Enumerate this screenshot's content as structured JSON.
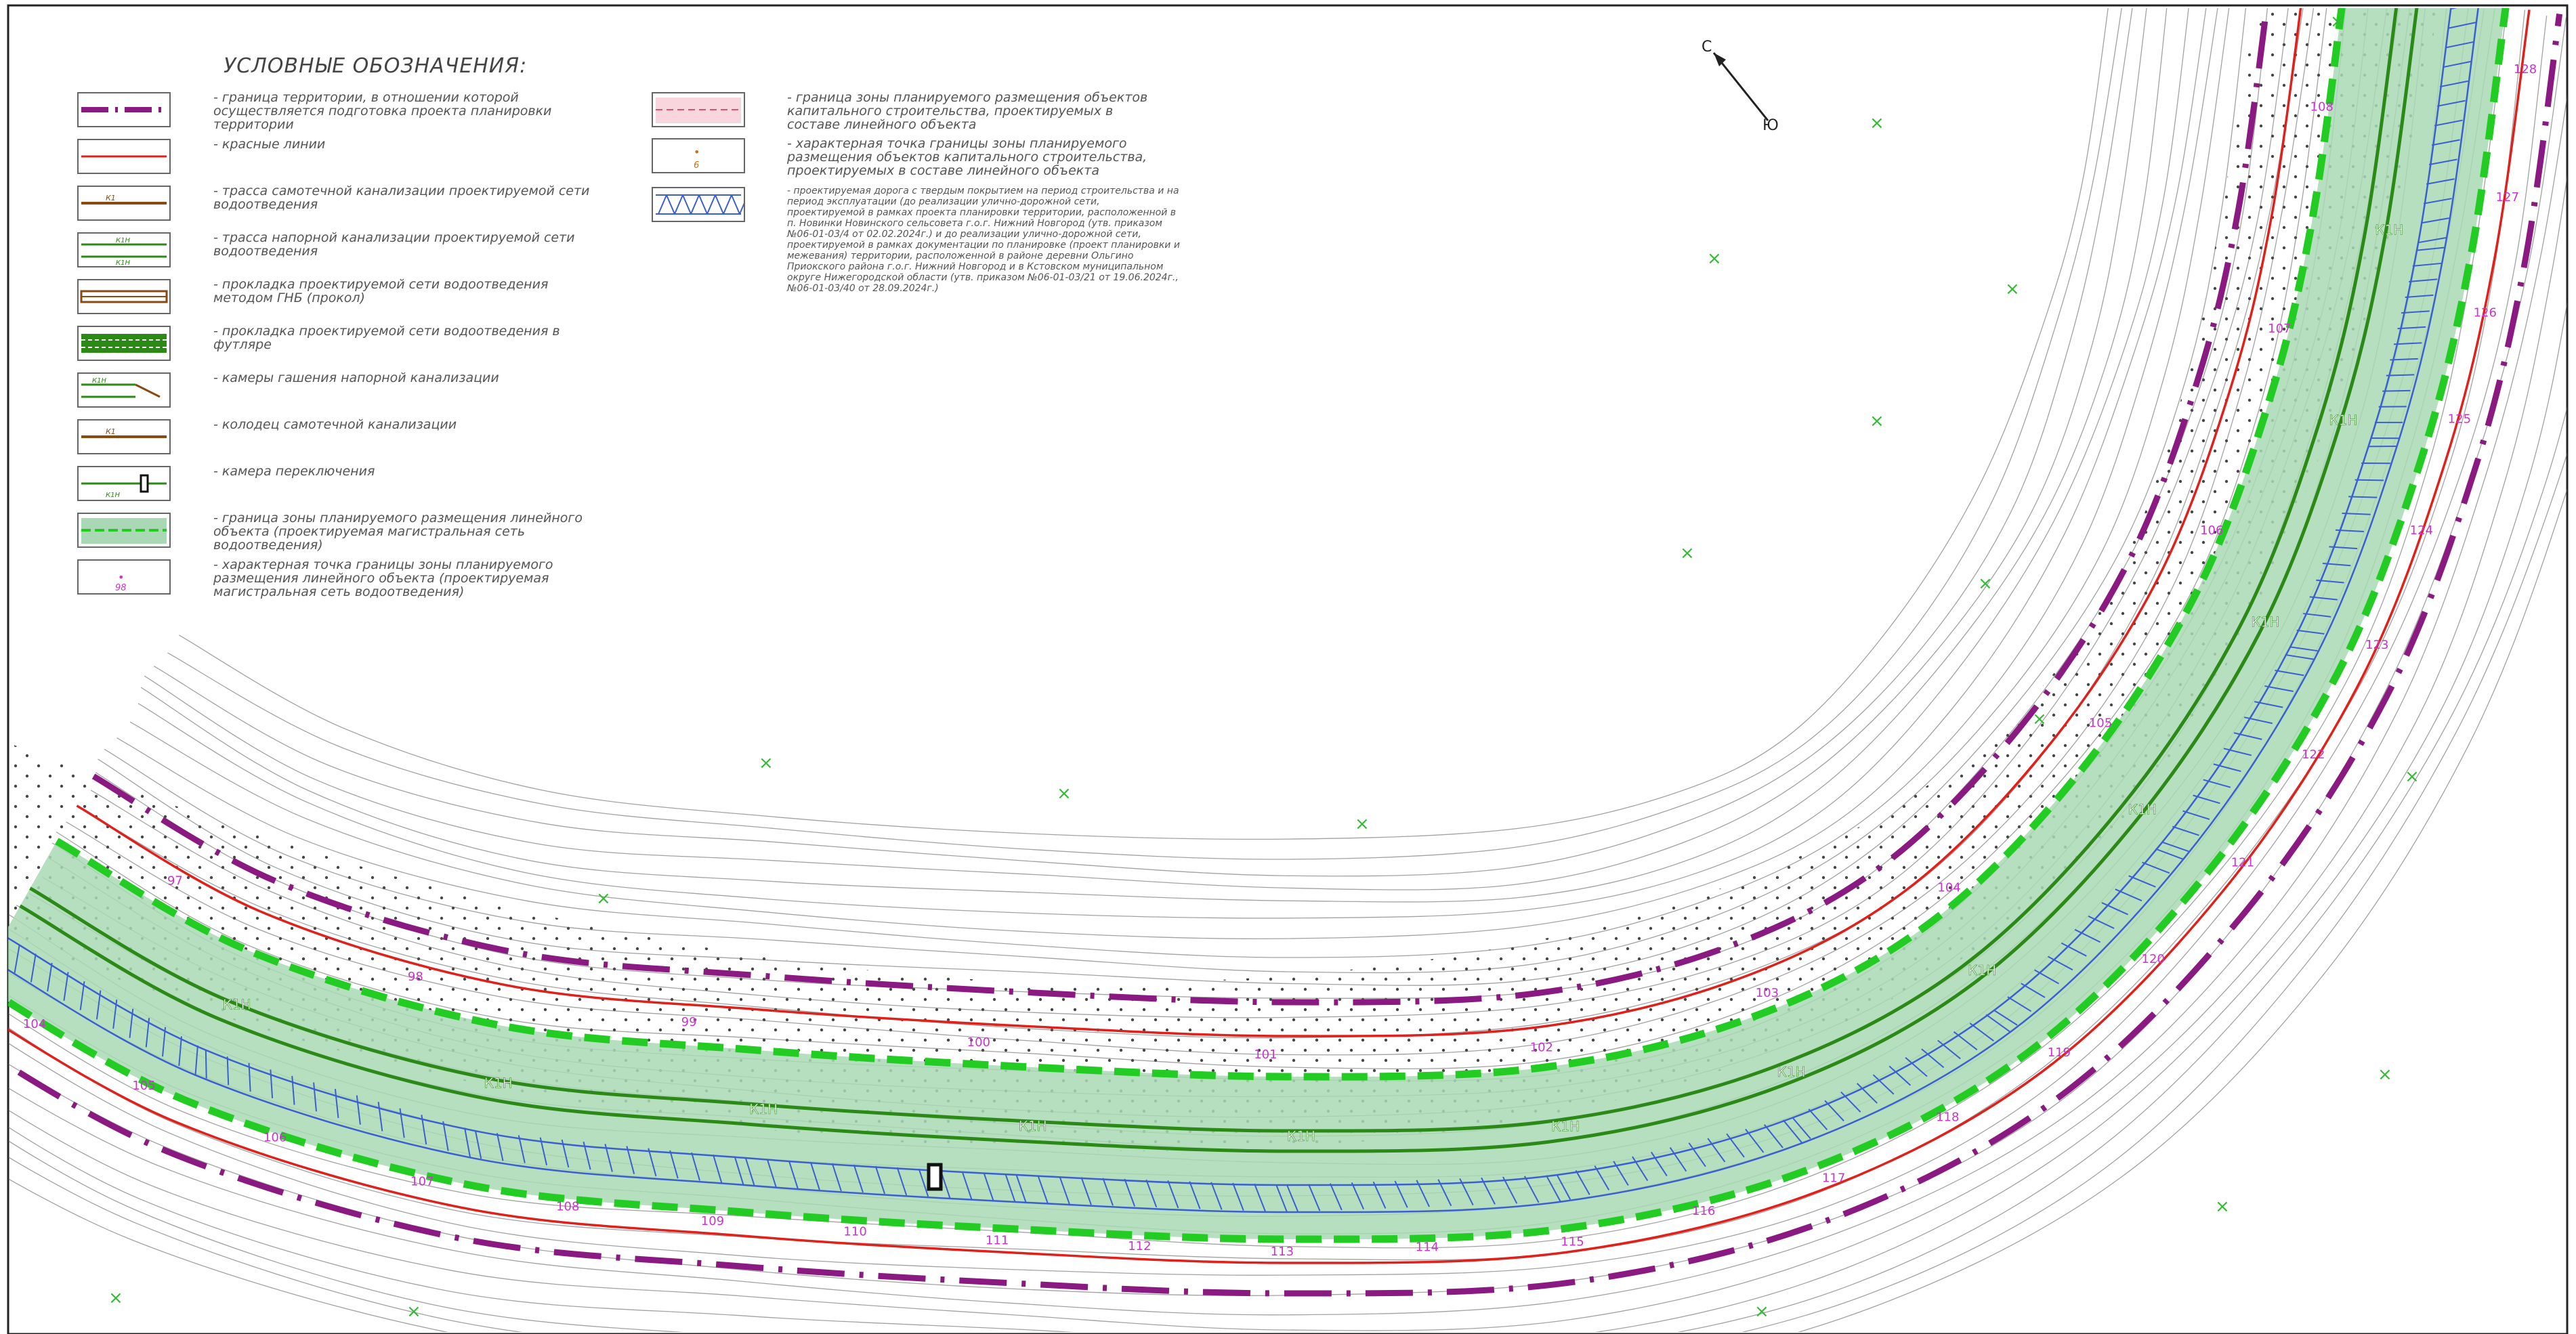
{
  "legend": {
    "title": "УСЛОВНЫЕ ОБОЗНАЧЕНИЯ:",
    "items_left": [
      {
        "symbol": "planning-boundary",
        "text": "- граница территории, в отношении которой осуществляется подготовка проекта планировки территории"
      },
      {
        "symbol": "red-line",
        "text": "- красные линии"
      },
      {
        "symbol": "gravity-sewer",
        "code": "К1",
        "text": "- трасса самотечной канализации проектируемой сети водоотведения"
      },
      {
        "symbol": "pressure-sewer",
        "code": "К1Н",
        "text": "- трасса напорной канализации проектируемой сети водоотведения"
      },
      {
        "symbol": "hdd-laying",
        "text": "- прокладка проектируемой сети водоотведения методом ГНБ (прокол)"
      },
      {
        "symbol": "casing-laying",
        "text": "- прокладка проектируемой сети водоотведения в футляре"
      },
      {
        "symbol": "damping-chamber",
        "code": "К1Н",
        "text": "- камеры гашения напорной канализации"
      },
      {
        "symbol": "gravity-well",
        "code": "К1",
        "text": "- колодец самотечной канализации"
      },
      {
        "symbol": "switch-chamber",
        "code": "К1Н",
        "text": "- камера переключения"
      },
      {
        "symbol": "linear-zone",
        "text": "- граница зоны планируемого размещения линейного объекта (проектируемая магистральная сеть водоотведения)"
      },
      {
        "symbol": "linear-point",
        "code": "98",
        "text": "- характерная точка границы зоны планируемого размещения линейного объекта (проектируемая магистральная сеть водоотведения)"
      }
    ],
    "items_right": [
      {
        "symbol": "capital-zone",
        "text": "- граница зоны планируемого размещения объектов капитального строительства, проектируемых в составе линейного объекта"
      },
      {
        "symbol": "capital-point",
        "code": "6",
        "text": "- характерная точка границы зоны планируемого размещения объектов капитального строительства, проектируемых в составе линейного объекта"
      },
      {
        "symbol": "paved-road",
        "text": "- проектируемая дорога с твердым покрытием на период строительства и на период эксплуатации (до реализации улично-дорожной сети, проектируемой в рамках проекта планировки территории, расположенной в п. Новинки Новинского сельсовета г.о.г. Нижний Новгород (утв. приказом №06-01-03/4 от 02.02.2024г.) и до реализации улично-дорожной сети, проектируемой в рамках документации по планировке (проект планировки и межевания) территории, расположенной в районе деревни Ольгино Приокского района г.о.г. Нижний Новгород и в Кстовском муниципальном округе Нижегородской области (утв. приказом №06-01-03/21 от 19.06.2024г., №06-01-03/40 от 28.09.2024г.)"
      }
    ]
  },
  "north_arrow": {
    "north": "С",
    "south": "Ю"
  },
  "pipe_labels": {
    "pressure": "К1Н"
  },
  "point_labels_outer": [
    "104",
    "105",
    "106",
    "107",
    "108",
    "109",
    "110",
    "111",
    "112",
    "113",
    "114",
    "115",
    "116",
    "117",
    "118",
    "119",
    "120",
    "121",
    "122",
    "123",
    "124",
    "125",
    "126",
    "127",
    "128"
  ],
  "point_labels_inner": [
    "97",
    "98",
    "99",
    "100",
    "101",
    "102",
    "103",
    "104",
    "105",
    "106",
    "107",
    "108"
  ],
  "colors": {
    "zone_fill": "#a8d9b4",
    "zone_border": "#22cc22",
    "planning_boundary": "#8a1a82",
    "red_line": "#e0201a",
    "pipe": "#2b8a16",
    "road": "#3a5fd0",
    "point_label": "#cc33cc",
    "contour": "#444444"
  }
}
